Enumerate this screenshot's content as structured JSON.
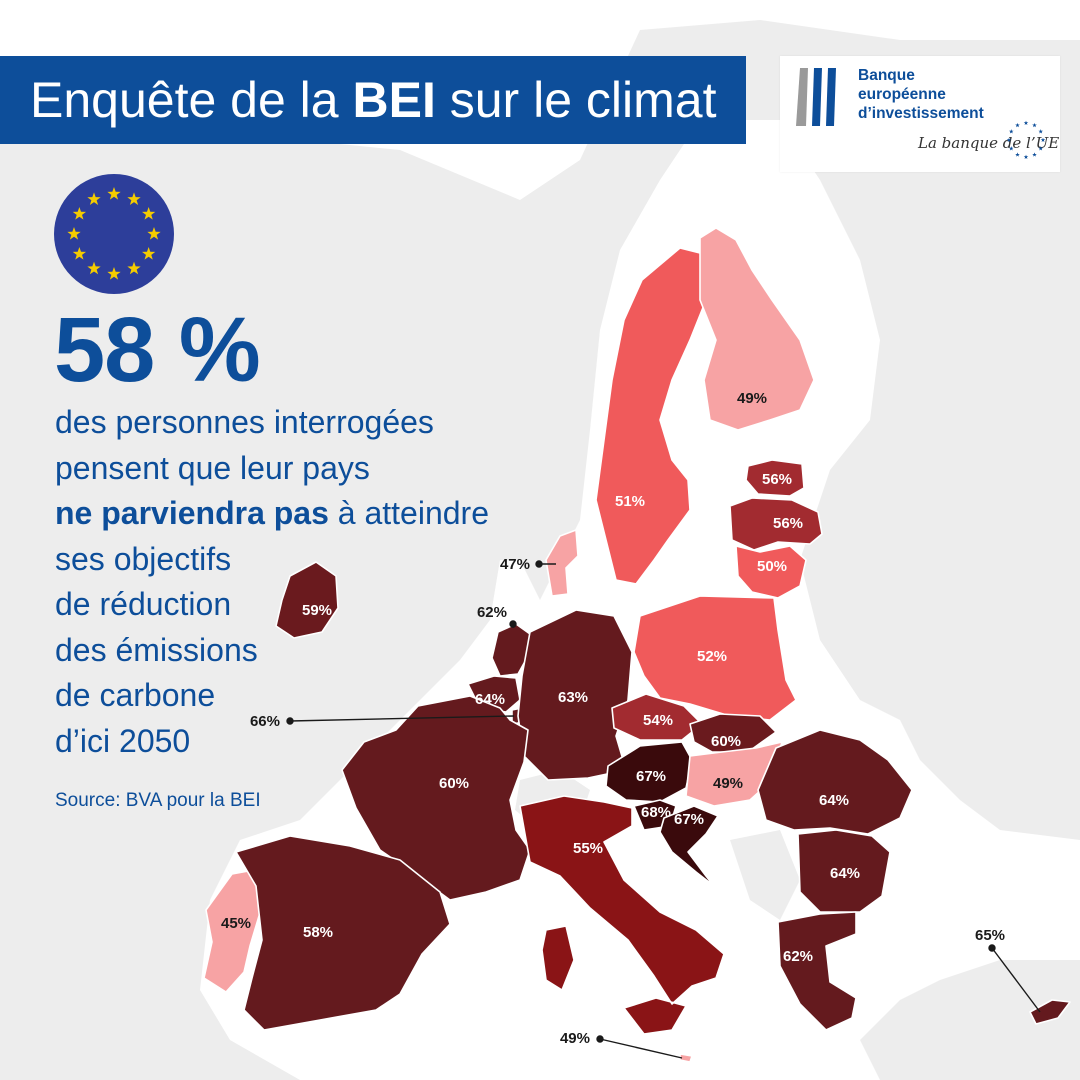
{
  "header": {
    "title_pre": "Enquête de la ",
    "title_bold": "BEI",
    "title_post": " sur le climat"
  },
  "logo": {
    "name_line1": "Banque",
    "name_line2": "européenne",
    "name_line3": "d’investissement",
    "tagline": "La banque de l’UE"
  },
  "headline": {
    "percent": "58 %",
    "line1": "des personnes interrogées",
    "line2": "pensent que leur pays",
    "line3_bold": "ne parviendra pas",
    "line3_rest": " à atteindre",
    "line4": "ses objectifs",
    "line5": "de réduction",
    "line6": "des émissions",
    "line7": "de carbone",
    "line8": "d’ici 2050"
  },
  "source": "Source: BVA pour la BEI",
  "colors": {
    "brand_blue": "#0d4e9a",
    "eu_blue": "#2d3e9a",
    "eu_gold": "#f5cc00",
    "land_gray": "#ededed",
    "border": "#ffffff"
  },
  "icons": {
    "eu_flag": "eu-flag-icon",
    "logo_mark": "eib-logo-icon"
  },
  "countries": [
    {
      "name": "Sweden",
      "value": "51%",
      "fill": "#f05a5b"
    },
    {
      "name": "Finland",
      "value": "49%",
      "fill": "#f7a3a4"
    },
    {
      "name": "Estonia",
      "value": "56%",
      "fill": "#a22b30"
    },
    {
      "name": "Latvia",
      "value": "56%",
      "fill": "#a22b30"
    },
    {
      "name": "Lithuania",
      "value": "50%",
      "fill": "#f05a5b"
    },
    {
      "name": "Denmark",
      "value": "47%",
      "fill": "#f7a3a4"
    },
    {
      "name": "Ireland",
      "value": "59%",
      "fill": "#6a1a1e"
    },
    {
      "name": "Netherlands",
      "value": "62%",
      "fill": "#641a1e"
    },
    {
      "name": "Belgium",
      "value": "64%",
      "fill": "#641a1e"
    },
    {
      "name": "Luxembourg",
      "value": "66%",
      "fill": "#641a1e"
    },
    {
      "name": "Germany",
      "value": "63%",
      "fill": "#641a1e"
    },
    {
      "name": "Poland",
      "value": "52%",
      "fill": "#f05a5b"
    },
    {
      "name": "Czechia",
      "value": "54%",
      "fill": "#a22b30"
    },
    {
      "name": "Slovakia",
      "value": "60%",
      "fill": "#6a1a1e"
    },
    {
      "name": "Austria",
      "value": "67%",
      "fill": "#3a0a0c"
    },
    {
      "name": "Hungary",
      "value": "49%",
      "fill": "#f7a3a4"
    },
    {
      "name": "Slovenia",
      "value": "68%",
      "fill": "#3a0a0c"
    },
    {
      "name": "Croatia",
      "value": "67%",
      "fill": "#3a0a0c"
    },
    {
      "name": "France",
      "value": "60%",
      "fill": "#641a1e"
    },
    {
      "name": "Italy",
      "value": "55%",
      "fill": "#8a1416"
    },
    {
      "name": "Romania",
      "value": "64%",
      "fill": "#641a1e"
    },
    {
      "name": "Bulgaria",
      "value": "64%",
      "fill": "#641a1e"
    },
    {
      "name": "Greece",
      "value": "62%",
      "fill": "#641a1e"
    },
    {
      "name": "Cyprus",
      "value": "65%",
      "fill": "#641a1e"
    },
    {
      "name": "Portugal",
      "value": "45%",
      "fill": "#f7a3a4"
    },
    {
      "name": "Spain",
      "value": "58%",
      "fill": "#641a1e"
    },
    {
      "name": "Malta",
      "value": "49%",
      "fill": "#f7a3a4"
    }
  ]
}
